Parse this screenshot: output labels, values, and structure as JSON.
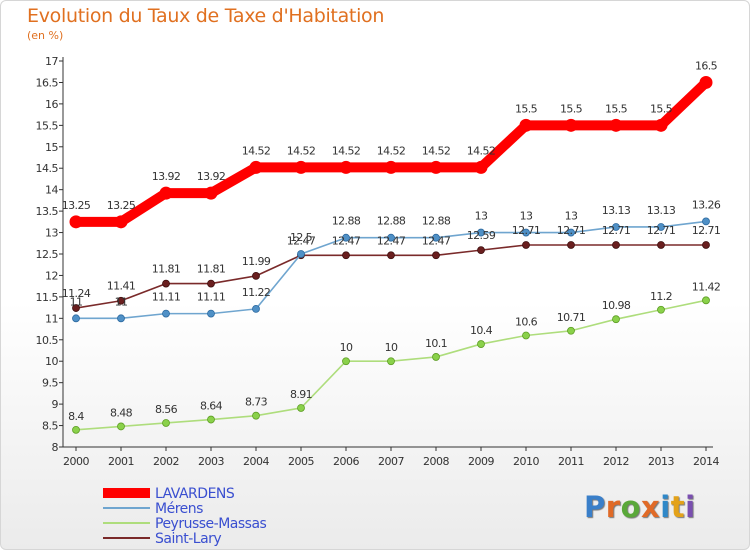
{
  "header": {
    "title": "Evolution du Taux de Taxe d'Habitation",
    "subtitle": "(en %)"
  },
  "logo": {
    "text": "Proxiti",
    "letter_colors": [
      "#3a7fc9",
      "#e06a27",
      "#5aa83a",
      "#e06a27",
      "#2f88c8",
      "#e3a21a",
      "#7a4fb0"
    ]
  },
  "chart_data": {
    "type": "line",
    "title": "Evolution du Taux de Taxe d'Habitation",
    "subtitle": "(en %)",
    "xlabel": "",
    "ylabel": "",
    "ylim": [
      8,
      17
    ],
    "yticks": [
      8,
      8.5,
      9,
      9.5,
      10,
      10.5,
      11,
      11.5,
      12,
      12.5,
      13,
      13.5,
      14,
      14.5,
      15,
      15.5,
      16,
      16.5,
      17
    ],
    "ytick_labels": [
      "8",
      "8.5",
      "9",
      "9.5",
      "10",
      "10.5",
      "11",
      "11.5",
      "12",
      "12.5",
      "13",
      "13.5",
      "14",
      "14.5",
      "15",
      "15.5",
      "16",
      "16.5",
      "17"
    ],
    "x": [
      "2000",
      "2001",
      "2002",
      "2003",
      "2004",
      "2005",
      "2006",
      "2007",
      "2008",
      "2009",
      "2010",
      "2011",
      "2012",
      "2013",
      "2014"
    ],
    "grid": false,
    "legend_position": "bottom-left",
    "series": [
      {
        "name": "LAVARDENS",
        "color": "#ff0000",
        "values": [
          13.25,
          13.25,
          13.92,
          13.92,
          14.52,
          14.52,
          14.52,
          14.52,
          14.52,
          14.52,
          15.5,
          15.5,
          15.5,
          15.5,
          16.5
        ],
        "labels": [
          "13.25",
          "13.25",
          "13.92",
          "13.92",
          "14.52",
          "14.52",
          "14.52",
          "14.52",
          "14.52",
          "14.52",
          "15.5",
          "15.5",
          "15.5",
          "15.5",
          "16.5"
        ]
      },
      {
        "name": "Mérens",
        "color": "#6fa5cf",
        "values": [
          11,
          11,
          11.11,
          11.11,
          11.22,
          12.5,
          12.88,
          12.88,
          12.88,
          13,
          13,
          13,
          13.13,
          13.13,
          13.26
        ],
        "labels": [
          "11",
          "11",
          "11.11",
          "11.11",
          "11.22",
          "12.5",
          "12.88",
          "12.88",
          "12.88",
          "13",
          "13",
          "13",
          "13.13",
          "13.13",
          "13.26"
        ]
      },
      {
        "name": "Peyrusse-Massas",
        "color": "#aedd7c",
        "values": [
          8.4,
          8.48,
          8.56,
          8.64,
          8.73,
          8.91,
          10,
          10,
          10.1,
          10.4,
          10.6,
          10.71,
          10.98,
          11.2,
          11.42
        ],
        "labels": [
          "8.4",
          "8.48",
          "8.56",
          "8.64",
          "8.73",
          "8.91",
          "10",
          "10",
          "10.1",
          "10.4",
          "10.6",
          "10.71",
          "10.98",
          "11.2",
          "11.42"
        ]
      },
      {
        "name": "Saint-Lary",
        "color": "#7a2a2a",
        "values": [
          11.24,
          11.41,
          11.81,
          11.81,
          11.99,
          12.47,
          12.47,
          12.47,
          12.47,
          12.59,
          12.71,
          12.71,
          12.71,
          12.71,
          12.71
        ],
        "labels": [
          "11.24",
          "11.41",
          "11.81",
          "11.81",
          "11.99",
          "12.47",
          "12.47",
          "12.47",
          "12.47",
          "12.59",
          "12.71",
          "12.71",
          "12.71",
          "12.71",
          "12.71"
        ]
      }
    ]
  }
}
